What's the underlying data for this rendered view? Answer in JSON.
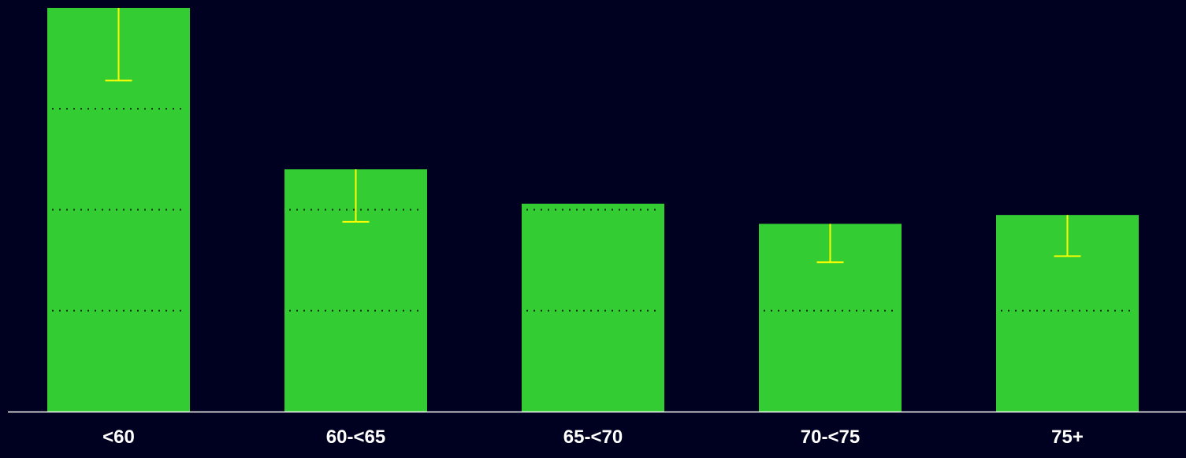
{
  "chart_data": {
    "type": "bar",
    "categories": [
      "<60",
      "60-<65",
      "65-<70",
      "70-<75",
      "75+"
    ],
    "values": [
      1.0,
      0.6,
      0.515,
      0.465,
      0.487
    ],
    "error_bars": [
      {
        "low": 0.82,
        "high": 1.0
      },
      {
        "low": 0.47,
        "high": 0.6
      },
      null,
      {
        "low": 0.37,
        "high": 0.465
      },
      {
        "low": 0.385,
        "high": 0.487
      }
    ],
    "ylim": [
      0,
      1.0
    ],
    "grid": "dotted lines drawn only inside bars",
    "grid_levels": [
      0.25,
      0.5,
      0.75
    ],
    "title": "",
    "xlabel": "",
    "ylabel": "",
    "legend": "none"
  },
  "colors": {
    "background": "#000021",
    "bar": "#33cc33",
    "error_bar": "#ffff00",
    "axis": "#ffffff",
    "tick_label": "#ffffff",
    "grid": "#0b2a0b"
  }
}
